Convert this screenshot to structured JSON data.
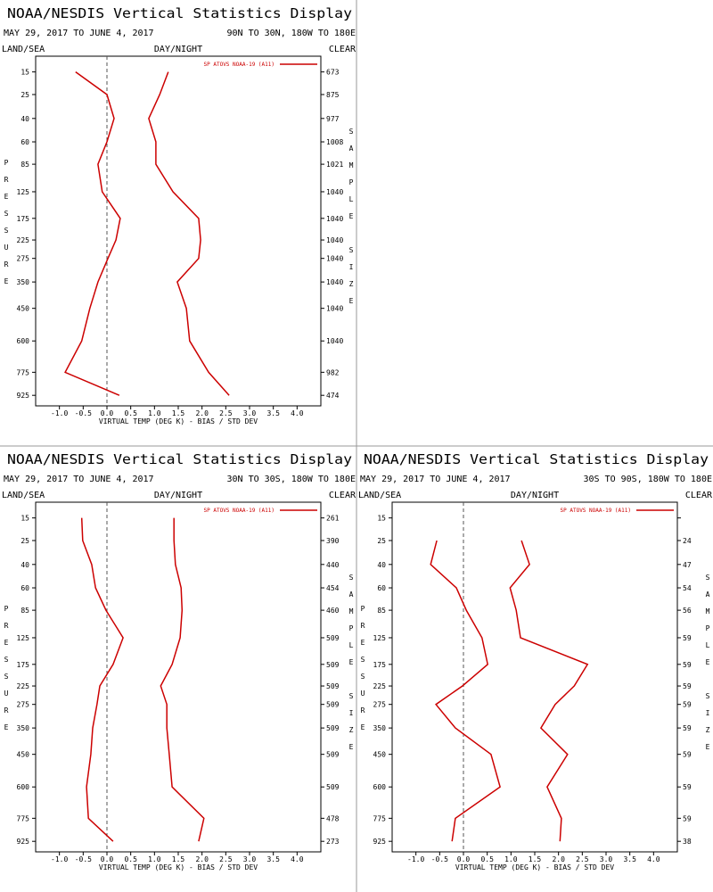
{
  "chart_data": [
    {
      "type": "profile",
      "title": "NOAA/NESDIS Vertical Statistics Display",
      "date_range": "MAY 29, 2017 TO JUNE 4, 2017",
      "region": "90N TO 30N, 180W TO 180E",
      "land_sea": "LAND/SEA",
      "day_night": "DAY/NIGHT",
      "clear": "CLEAR",
      "legend": "SP ATOVS NOAA-19 (A11)",
      "color": "#cc0000",
      "ylabel": "PRESSURE",
      "y2label": "SAMPLE SIZE",
      "xlabel": "VIRTUAL TEMP (DEG K) - BIAS / STD DEV",
      "xlim": [
        -1.5,
        4.5
      ],
      "xticks": [
        {
          "value": -1,
          "label": "-1.0"
        },
        {
          "value": -0.5,
          "label": "-0.5"
        },
        {
          "value": 0,
          "label": "0.0"
        },
        {
          "value": 0.5,
          "label": "0.5"
        },
        {
          "value": 1,
          "label": "1.0"
        },
        {
          "value": 1.5,
          "label": "1.5"
        },
        {
          "value": 2,
          "label": "2.0"
        },
        {
          "value": 2.5,
          "label": "2.5"
        },
        {
          "value": 3,
          "label": "3.0"
        },
        {
          "value": 3.5,
          "label": "3.5"
        },
        {
          "value": 4,
          "label": "4.0"
        }
      ],
      "ylim": [
        10,
        1000
      ],
      "yticks": [
        15,
        25,
        40,
        60,
        85,
        125,
        175,
        225,
        275,
        350,
        450,
        600,
        775,
        925
      ],
      "sample_sizes": [
        673,
        875,
        977,
        1008,
        1021,
        1040,
        1040,
        1040,
        1040,
        1040,
        1040,
        1040,
        982,
        474
      ],
      "bias": [
        -0.66,
        0.0,
        0.15,
        0.0,
        -0.19,
        -0.1,
        0.28,
        0.19,
        0.02,
        -0.19,
        -0.36,
        -0.53,
        -0.88,
        0.26
      ],
      "std_dev": [
        1.29,
        1.11,
        0.88,
        1.03,
        1.03,
        1.39,
        1.93,
        1.97,
        1.93,
        1.48,
        1.67,
        1.74,
        2.14,
        2.57
      ]
    },
    {
      "type": "profile",
      "title": "NOAA/NESDIS Vertical Statistics Display",
      "date_range": "MAY 29, 2017 TO JUNE 4, 2017",
      "region": "30N TO 30S, 180W TO 180E",
      "land_sea": "LAND/SEA",
      "day_night": "DAY/NIGHT",
      "clear": "CLEAR",
      "legend": "SP ATOVS NOAA-19 (A11)",
      "color": "#cc0000",
      "ylabel": "PRESSURE",
      "y2label": "SAMPLE SIZE",
      "xlabel": "VIRTUAL TEMP (DEG K) - BIAS / STD DEV",
      "xlim": [
        -1.5,
        4.5
      ],
      "xticks": [
        {
          "value": -1,
          "label": "-1.0"
        },
        {
          "value": -0.5,
          "label": "-0.5"
        },
        {
          "value": 0,
          "label": "0.0"
        },
        {
          "value": 0.5,
          "label": "0.5"
        },
        {
          "value": 1,
          "label": "1.0"
        },
        {
          "value": 1.5,
          "label": "1.5"
        },
        {
          "value": 2,
          "label": "2.0"
        },
        {
          "value": 2.5,
          "label": "2.5"
        },
        {
          "value": 3,
          "label": "3.0"
        },
        {
          "value": 3.5,
          "label": "3.5"
        },
        {
          "value": 4,
          "label": "4.0"
        }
      ],
      "ylim": [
        10,
        1000
      ],
      "yticks": [
        15,
        25,
        40,
        60,
        85,
        125,
        175,
        225,
        275,
        350,
        450,
        600,
        775,
        925
      ],
      "sample_sizes": [
        261,
        390,
        440,
        454,
        460,
        509,
        509,
        509,
        509,
        509,
        509,
        509,
        478,
        273
      ],
      "bias": [
        -0.53,
        -0.51,
        -0.32,
        -0.24,
        -0.02,
        0.34,
        0.13,
        -0.15,
        -0.21,
        -0.3,
        -0.34,
        -0.43,
        -0.39,
        0.13
      ],
      "std_dev": [
        1.41,
        1.41,
        1.44,
        1.56,
        1.58,
        1.54,
        1.37,
        1.13,
        1.26,
        1.26,
        1.31,
        1.37,
        2.04,
        1.93
      ]
    },
    {
      "type": "profile",
      "title": "NOAA/NESDIS Vertical Statistics Display",
      "date_range": "MAY 29, 2017 TO JUNE 4, 2017",
      "region": "30S TO 90S, 180W TO 180E",
      "land_sea": "LAND/SEA",
      "day_night": "DAY/NIGHT",
      "clear": "CLEAR",
      "legend": "SP ATOVS NOAA-19 (A11)",
      "color": "#cc0000",
      "ylabel": "PRESSURE",
      "y2label": "SAMPLE SIZE",
      "xlabel": "VIRTUAL TEMP (DEG K) - BIAS / STD DEV",
      "xlim": [
        -1.5,
        4.5
      ],
      "xticks": [
        {
          "value": -1,
          "label": "-1.0"
        },
        {
          "value": -0.5,
          "label": "-0.5"
        },
        {
          "value": 0,
          "label": "0.0"
        },
        {
          "value": 0.5,
          "label": "0.5"
        },
        {
          "value": 1,
          "label": "1.0"
        },
        {
          "value": 1.5,
          "label": "1.5"
        },
        {
          "value": 2,
          "label": "2.0"
        },
        {
          "value": 2.5,
          "label": "2.5"
        },
        {
          "value": 3,
          "label": "3.0"
        },
        {
          "value": 3.5,
          "label": "3.5"
        },
        {
          "value": 4,
          "label": "4.0"
        }
      ],
      "ylim": [
        10,
        1000
      ],
      "yticks": [
        15,
        25,
        40,
        60,
        85,
        125,
        175,
        225,
        275,
        350,
        450,
        600,
        775,
        925
      ],
      "sample_sizes": [
        null,
        24,
        47,
        54,
        56,
        59,
        59,
        59,
        59,
        59,
        59,
        59,
        59,
        38
      ],
      "bias": [
        null,
        -0.56,
        -0.69,
        -0.15,
        0.06,
        0.39,
        0.51,
        -0.02,
        -0.58,
        -0.17,
        0.58,
        0.77,
        -0.17,
        -0.24
      ],
      "std_dev": [
        null,
        1.22,
        1.39,
        0.98,
        1.11,
        1.2,
        2.61,
        2.33,
        1.93,
        1.63,
        2.19,
        1.76,
        2.06,
        2.03
      ]
    }
  ]
}
